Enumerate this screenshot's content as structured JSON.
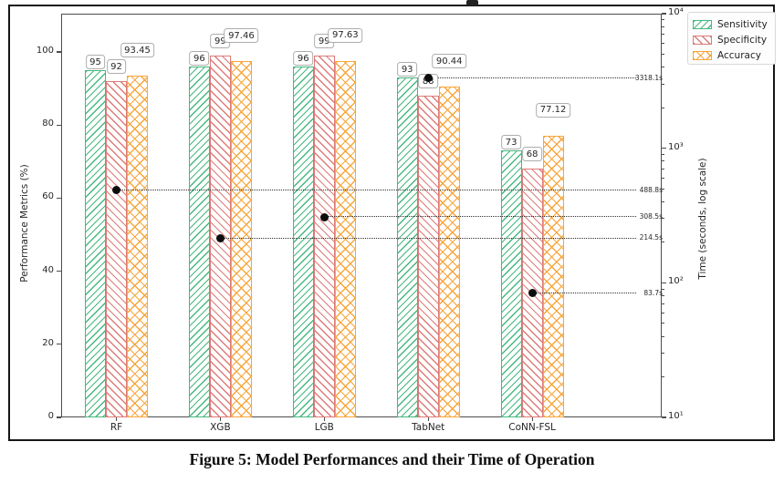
{
  "caption": "Figure 5: Model Performances and their Time of Operation",
  "colors": {
    "sensitivity": "#45b87f",
    "specificity": "#dd7b78",
    "accuracy": "#f7a63b",
    "time_marker": "#0d0d0d",
    "spine": "#4d4d4d"
  },
  "chart_data": {
    "type": "bar",
    "categories": [
      "RF",
      "XGB",
      "LGB",
      "TabNet",
      "CoNN-FSL"
    ],
    "series": [
      {
        "name": "Sensitivity",
        "color": "#45b87f",
        "hatch": "/",
        "values": [
          95,
          96,
          96,
          93,
          73
        ],
        "labels": [
          "95",
          "96",
          "96",
          "93",
          "73"
        ]
      },
      {
        "name": "Specificity",
        "color": "#dd7b78",
        "hatch": "\\",
        "values": [
          92,
          99,
          99,
          88,
          68
        ],
        "labels": [
          "92",
          "99",
          "99",
          "88",
          "68"
        ]
      },
      {
        "name": "Accuracy",
        "color": "#f7a63b",
        "hatch": "x",
        "values": [
          93.45,
          97.46,
          97.63,
          90.44,
          77.12
        ],
        "labels": [
          "93.45",
          "97.46",
          "97.63",
          "90.44",
          "77.12"
        ]
      }
    ],
    "time_markers": {
      "name": "Time",
      "marker": "black-dot",
      "log_scale": true,
      "values": [
        488.8,
        214.5,
        308.5,
        3318.1,
        83.7
      ],
      "labels": [
        "488.8s",
        "214.5s",
        "308.5s",
        "3318.1s",
        "83.7s"
      ]
    },
    "axes": {
      "left": {
        "label": "Performance Metrics (%)",
        "ticks": [
          "0",
          "20",
          "40",
          "60",
          "80",
          "100"
        ],
        "lim": [
          0,
          110
        ]
      },
      "right": {
        "label": "Time (seconds, log scale)",
        "ticks": [
          "10¹",
          "10²",
          "10³",
          "10⁴"
        ],
        "lim": [
          10,
          10000
        ]
      }
    },
    "legend_position": "upper right",
    "grid": false,
    "title": ""
  }
}
